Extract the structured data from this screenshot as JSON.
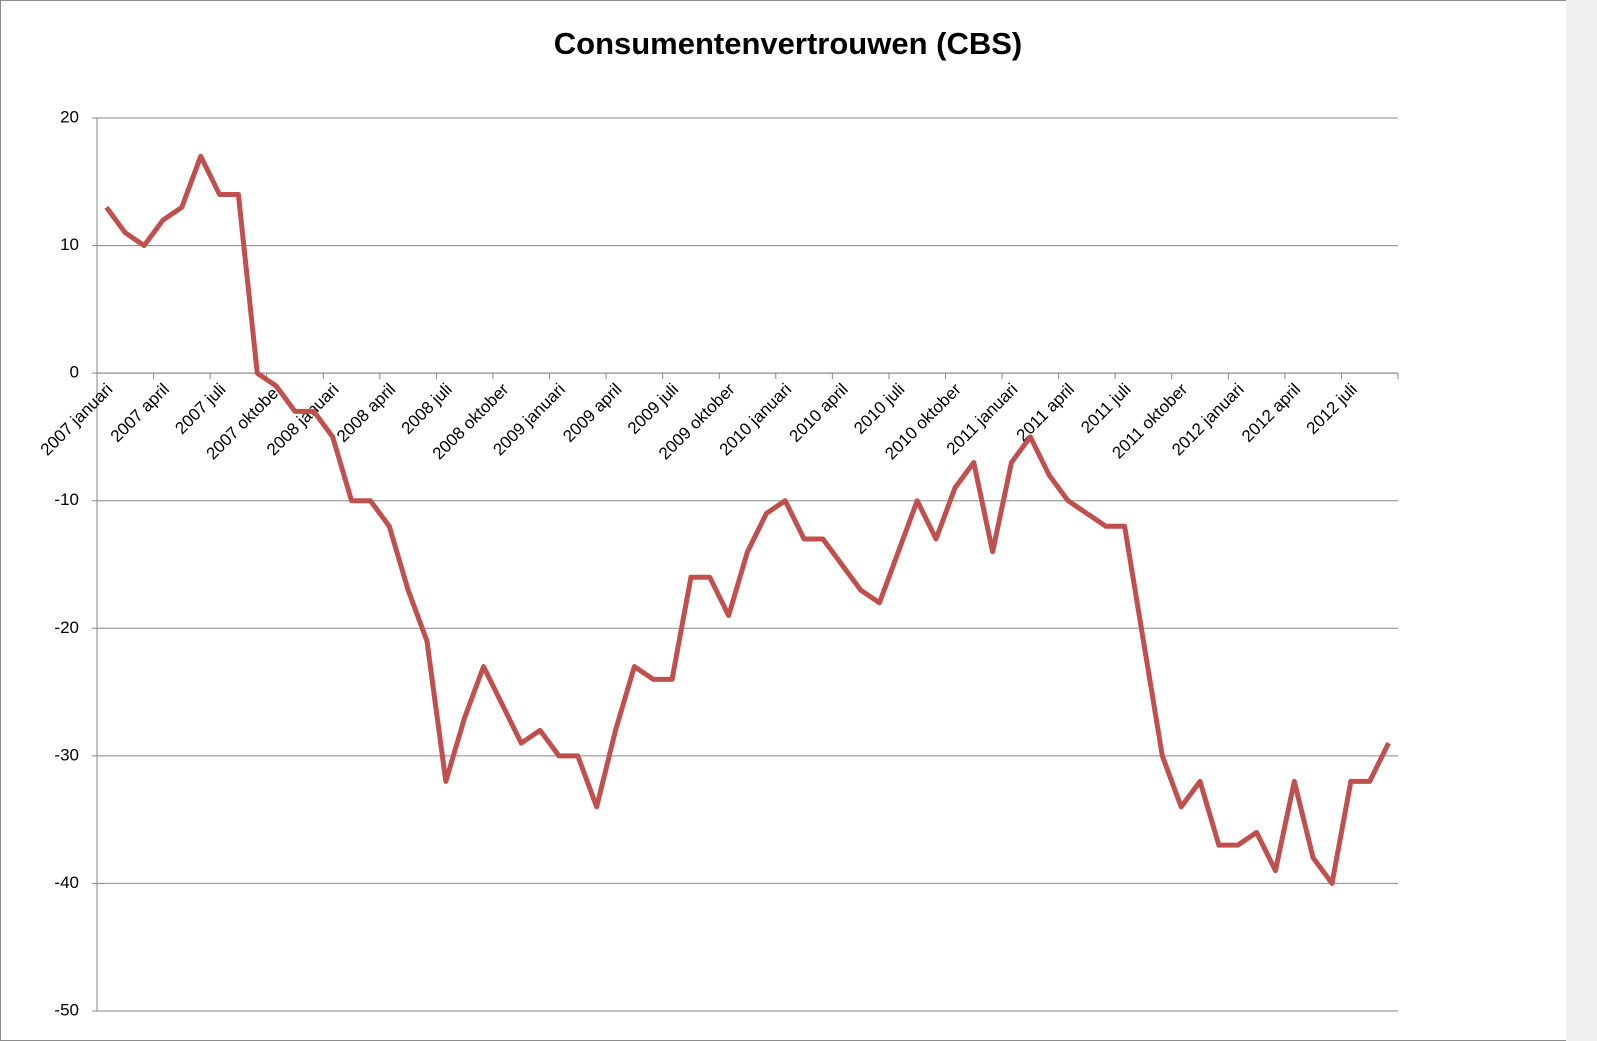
{
  "chart_data": {
    "type": "line",
    "title": "Consumentenvertrouwen (CBS)",
    "categories": [
      "2007 januari",
      null,
      null,
      "2007 april",
      null,
      null,
      "2007 juli",
      null,
      null,
      "2007 oktober",
      null,
      null,
      "2008 januari",
      null,
      null,
      "2008 april",
      null,
      null,
      "2008 juli",
      null,
      null,
      "2008 oktober",
      null,
      null,
      "2009 januari",
      null,
      null,
      "2009 april",
      null,
      null,
      "2009 juli",
      null,
      null,
      "2009 oktober",
      null,
      null,
      "2010 januari",
      null,
      null,
      "2010 april",
      null,
      null,
      "2010 juli",
      null,
      null,
      "2010 oktober",
      null,
      null,
      "2011 januari",
      null,
      null,
      "2011 april",
      null,
      null,
      "2011 juli",
      null,
      null,
      "2011 oktober",
      null,
      null,
      "2012 januari",
      null,
      null,
      "2012 april",
      null,
      null,
      "2012 juli",
      null,
      null
    ],
    "series": [
      {
        "name": "Consumentenvertrouwen",
        "color": "#c0504d",
        "values": [
          13,
          11,
          10,
          12,
          13,
          17,
          14,
          14,
          0,
          -1,
          -3,
          -3,
          -5,
          -10,
          -10,
          -12,
          -17,
          -21,
          -32,
          -27,
          -23,
          -26,
          -29,
          -28,
          -30,
          -30,
          -34,
          -28,
          -23,
          -24,
          -24,
          -16,
          -16,
          -19,
          -14,
          -11,
          -10,
          -13,
          -13,
          -15,
          -17,
          -18,
          -14,
          -10,
          -13,
          -9,
          -7,
          -14,
          -7,
          -5,
          -8,
          -10,
          -11,
          -12,
          -12,
          -21,
          -30,
          -34,
          -32,
          -37,
          -37,
          -36,
          -39,
          -32,
          -38,
          -40,
          -32,
          -32,
          -29
        ]
      }
    ],
    "ylim": [
      -50,
      20
    ],
    "yticks": [
      -50,
      -40,
      -30,
      -20,
      -10,
      0,
      10,
      20
    ],
    "grid": true,
    "legend": false
  }
}
